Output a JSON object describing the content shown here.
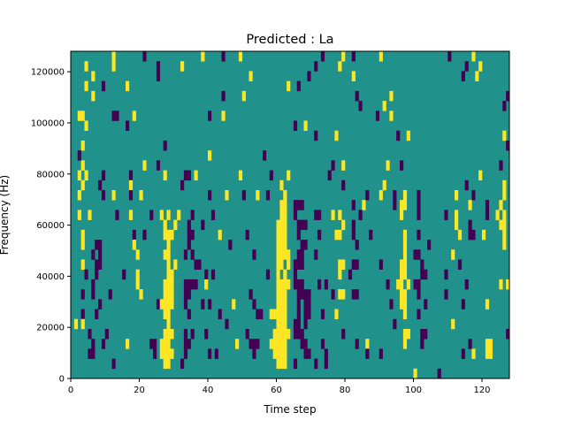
{
  "chart_data": {
    "type": "heatmap",
    "title": "Predicted : La",
    "xlabel": "Time step",
    "ylabel": "Frequency (Hz)",
    "xlim": [
      0,
      128
    ],
    "ylim": [
      0,
      128000
    ],
    "x_ticks": [
      "0",
      "20",
      "40",
      "60",
      "80",
      "100",
      "120"
    ],
    "x_tick_values": [
      0,
      20,
      40,
      60,
      80,
      100,
      120
    ],
    "y_ticks": [
      "0",
      "20000",
      "40000",
      "60000",
      "80000",
      "100000",
      "120000"
    ],
    "y_tick_values": [
      0,
      20000,
      40000,
      60000,
      80000,
      100000,
      120000
    ],
    "n_time_steps": 128,
    "n_freq_bins": 33,
    "colors": {
      "background": "#21918c",
      "y": "#fde725",
      "p": "#440154"
    },
    "legend": "none",
    "rows_top_to_bottom": [
      "12y 21p 38y 44p 49y 73p 79y 82p 90y 110p 117y",
      "4y 12y 25p 32y 71p 78y 115p 119y",
      "6y 25p 52y 69p 82y 114p 118y",
      "4y 9p 16y 63y 66p",
      "6y 44p 50y 83p 93y 127p",
      "84p 91y 126p",
      "2-3y 12-13p 18y 40p 44y 89p 93y",
      "4y 16p 65p 68y",
      "71p 77y 95p 98y 126y",
      "3y 27p 127p",
      "2p 40y 56p",
      "3y 21y 25p 76p 79y 92y 96p 125p",
      "2y 4y 9p 17p 27y 33-34p 36y 49y 58p 63y 75p 119y",
      "3y 8p 17y 32p 61y 79p 91y 115p 126y",
      "2y 9p 12y 17p 20y 40p 45y 50p 54y 57p 62y 86p 90y 94p 97y 101p 112y 117p 126y",
      "61-62y 65-67p 82p 85y 94p 96-97y 101p 116y 121p 125y",
      "2y 5y 13p 17y 23p 26y 28y 31y 35p 41p 61-62y 65p 71-72p 76y 78y 84p 96y 101p 109p 112y 121p 124y 126y",
      "27y 30y 34p 38p 60-62y 66-68p 79y 82p 112y 116p 125-126y",
      "3y 18p 21p 27-29y 34-35p 43y 51p 60-62y 66p 72p 77-78y 82p 87p 97y 101p 113y 116-117p 120y 126y",
      "3y 7-8p 18y 28y 34p 46p 60-62y 67-68p 83p 97y 104p 126y",
      "6p 8p 19y 27-28y 33p 35p 53p 60-63y 66-67p 71p 97y 100-101p 111y",
      "3y 7-8p 28y 30y 36-37p 60-61y 63y 65-67p 78-79y 82-83p 90p 96-97y 102p 113p",
      "4p 7p 15p 19y 28-29y 39p 41p 57p 60y 62y 65p 78y 81p 96-97y 102-103p 109p",
      "6p 19y 27-29y 33-36p 39y 60-63y 65-67p 72p 74p 92p 95-96y 98y 100-101p 115p 125y 127y",
      "3p 6p 11p 20y 27-29y 33-34p 52p 60-62y 66-69p 76p 78-79y 82-83p 96-97y 101p 109p",
      "8p 25p 26-29y 33p 38p 40p 47y 53p 60-62y 66p 68-69p 93p 96-97y 103p 114p 121y",
      "3p 7p 27-28y 34p 43p 54-55p 58-62y 66p 68-69p 73p 77y 97y 101p",
      "1y 3y 28y 45p 60-62y 65-66p 68p 94p 111y",
      "5p 10p 27-29y 33p 35p 39p 51p 59-63y 65-67p 79p 97-98y 102-103p 127p",
      "6p 9p 16y 23-24p 26-28y 33-34p 48y 52-54p 58-62y 67-68p 73p 83p 86y 97y 102p 116p 121-122y",
      "5-6p 24p 26-29y 33p 40p 42p 53p 59-62y 68-69p 74p 86p 90p 114p 117y 121-122y",
      "12p 27-28y 32p 60-62y 65p 71p 74p",
      "100y 107p"
    ]
  }
}
